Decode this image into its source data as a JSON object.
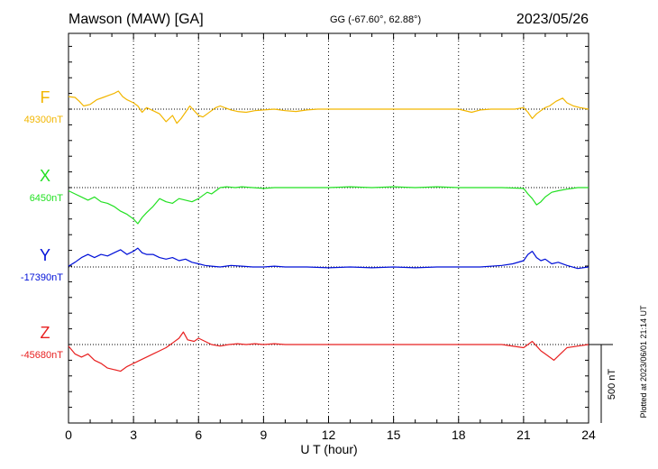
{
  "header": {
    "station": "Mawson (MAW)  [GA]",
    "coords": "GG (-67.60°,  62.88°)",
    "date": "2023/05/26"
  },
  "footer": {
    "plotted": "Plotted at 2023/06/01 21:14 UT",
    "scale_label": "500 nT"
  },
  "chart_data": {
    "type": "line",
    "xlabel": "U T (hour)",
    "xlim": [
      0,
      24
    ],
    "x_ticks": [
      0,
      3,
      6,
      9,
      12,
      15,
      18,
      21,
      24
    ],
    "x_tick_labels": [
      "0",
      "3",
      "6",
      "9",
      "12",
      "15",
      "18",
      "21",
      "24"
    ],
    "scale_nT": 500,
    "grid": "dotted vertical lines every 3 h",
    "series": [
      {
        "name": "F",
        "baseline_label": "49300nT",
        "baseline_nT": 49300,
        "color": "#f2b600",
        "points": [
          [
            0,
            80
          ],
          [
            0.3,
            75
          ],
          [
            0.5,
            50
          ],
          [
            0.7,
            20
          ],
          [
            1.0,
            30
          ],
          [
            1.3,
            60
          ],
          [
            1.6,
            75
          ],
          [
            1.9,
            90
          ],
          [
            2.1,
            100
          ],
          [
            2.3,
            115
          ],
          [
            2.5,
            80
          ],
          [
            2.7,
            60
          ],
          [
            3.0,
            40
          ],
          [
            3.2,
            20
          ],
          [
            3.4,
            -20
          ],
          [
            3.6,
            10
          ],
          [
            3.9,
            -10
          ],
          [
            4.2,
            -30
          ],
          [
            4.5,
            -80
          ],
          [
            4.8,
            -40
          ],
          [
            5.0,
            -90
          ],
          [
            5.2,
            -60
          ],
          [
            5.4,
            -20
          ],
          [
            5.6,
            20
          ],
          [
            5.8,
            -10
          ],
          [
            6.0,
            -40
          ],
          [
            6.2,
            -50
          ],
          [
            6.4,
            -30
          ],
          [
            6.6,
            -10
          ],
          [
            6.8,
            10
          ],
          [
            7.0,
            20
          ],
          [
            7.2,
            10
          ],
          [
            7.5,
            -5
          ],
          [
            7.8,
            -15
          ],
          [
            8.2,
            -20
          ],
          [
            8.6,
            -10
          ],
          [
            9.0,
            -5
          ],
          [
            9.5,
            0
          ],
          [
            10,
            -10
          ],
          [
            10.5,
            -15
          ],
          [
            11,
            -5
          ],
          [
            11.5,
            0
          ],
          [
            12,
            0
          ],
          [
            13,
            0
          ],
          [
            14,
            0
          ],
          [
            15,
            0
          ],
          [
            16,
            0
          ],
          [
            17,
            0
          ],
          [
            18,
            0
          ],
          [
            18.6,
            -20
          ],
          [
            19,
            -5
          ],
          [
            19.5,
            0
          ],
          [
            20,
            0
          ],
          [
            20.6,
            0
          ],
          [
            21,
            10
          ],
          [
            21.2,
            -20
          ],
          [
            21.4,
            -60
          ],
          [
            21.6,
            -30
          ],
          [
            21.8,
            -10
          ],
          [
            22.0,
            10
          ],
          [
            22.2,
            20
          ],
          [
            22.5,
            50
          ],
          [
            22.8,
            70
          ],
          [
            23.0,
            40
          ],
          [
            23.3,
            20
          ],
          [
            23.6,
            10
          ],
          [
            24,
            0
          ]
        ]
      },
      {
        "name": "X",
        "baseline_label": "6450nT",
        "baseline_nT": 6450,
        "color": "#22e022",
        "points": [
          [
            0,
            -20
          ],
          [
            0.3,
            -40
          ],
          [
            0.6,
            -60
          ],
          [
            0.9,
            -80
          ],
          [
            1.2,
            -60
          ],
          [
            1.5,
            -90
          ],
          [
            1.8,
            -100
          ],
          [
            2.1,
            -120
          ],
          [
            2.4,
            -150
          ],
          [
            2.7,
            -170
          ],
          [
            3.0,
            -200
          ],
          [
            3.2,
            -230
          ],
          [
            3.4,
            -190
          ],
          [
            3.6,
            -160
          ],
          [
            3.9,
            -120
          ],
          [
            4.2,
            -70
          ],
          [
            4.5,
            -90
          ],
          [
            4.8,
            -100
          ],
          [
            5.1,
            -70
          ],
          [
            5.4,
            -80
          ],
          [
            5.7,
            -90
          ],
          [
            6.0,
            -70
          ],
          [
            6.2,
            -50
          ],
          [
            6.4,
            -30
          ],
          [
            6.6,
            -40
          ],
          [
            6.8,
            -20
          ],
          [
            7.0,
            0
          ],
          [
            7.3,
            5
          ],
          [
            7.7,
            0
          ],
          [
            8.0,
            5
          ],
          [
            8.5,
            0
          ],
          [
            9.0,
            -5
          ],
          [
            9.5,
            0
          ],
          [
            10,
            0
          ],
          [
            11,
            0
          ],
          [
            12,
            0
          ],
          [
            13,
            5
          ],
          [
            14,
            0
          ],
          [
            15,
            5
          ],
          [
            16,
            0
          ],
          [
            17,
            5
          ],
          [
            18,
            0
          ],
          [
            19,
            0
          ],
          [
            20,
            0
          ],
          [
            21,
            -5
          ],
          [
            21.2,
            -40
          ],
          [
            21.4,
            -70
          ],
          [
            21.6,
            -110
          ],
          [
            21.8,
            -90
          ],
          [
            22.0,
            -60
          ],
          [
            22.3,
            -30
          ],
          [
            22.6,
            -20
          ],
          [
            23,
            -10
          ],
          [
            23.5,
            0
          ],
          [
            24,
            0
          ]
        ]
      },
      {
        "name": "Y",
        "baseline_label": "-17390nT",
        "baseline_nT": -17390,
        "color": "#0010d8",
        "points": [
          [
            0,
            5
          ],
          [
            0.3,
            30
          ],
          [
            0.6,
            60
          ],
          [
            0.9,
            80
          ],
          [
            1.2,
            60
          ],
          [
            1.5,
            80
          ],
          [
            1.8,
            70
          ],
          [
            2.1,
            90
          ],
          [
            2.4,
            110
          ],
          [
            2.7,
            80
          ],
          [
            3.0,
            100
          ],
          [
            3.2,
            120
          ],
          [
            3.4,
            90
          ],
          [
            3.6,
            80
          ],
          [
            3.9,
            80
          ],
          [
            4.2,
            60
          ],
          [
            4.5,
            50
          ],
          [
            4.8,
            60
          ],
          [
            5.1,
            40
          ],
          [
            5.4,
            50
          ],
          [
            5.7,
            30
          ],
          [
            6.0,
            20
          ],
          [
            6.3,
            10
          ],
          [
            6.6,
            5
          ],
          [
            7.0,
            0
          ],
          [
            7.5,
            10
          ],
          [
            8.0,
            5
          ],
          [
            8.5,
            0
          ],
          [
            9.0,
            0
          ],
          [
            9.5,
            5
          ],
          [
            10,
            0
          ],
          [
            11,
            0
          ],
          [
            12,
            -5
          ],
          [
            13,
            0
          ],
          [
            14,
            -5
          ],
          [
            15,
            0
          ],
          [
            16,
            -5
          ],
          [
            17,
            0
          ],
          [
            18,
            0
          ],
          [
            19,
            0
          ],
          [
            20,
            10
          ],
          [
            20.5,
            20
          ],
          [
            21,
            40
          ],
          [
            21.2,
            80
          ],
          [
            21.4,
            100
          ],
          [
            21.6,
            60
          ],
          [
            21.8,
            40
          ],
          [
            22.0,
            50
          ],
          [
            22.3,
            20
          ],
          [
            22.6,
            30
          ],
          [
            23.0,
            10
          ],
          [
            23.5,
            -10
          ],
          [
            24,
            0
          ]
        ]
      },
      {
        "name": "Z",
        "baseline_label": "-45680nT",
        "baseline_nT": -45680,
        "color": "#e82020",
        "points": [
          [
            0,
            -10
          ],
          [
            0.3,
            -60
          ],
          [
            0.6,
            -80
          ],
          [
            0.9,
            -60
          ],
          [
            1.2,
            -100
          ],
          [
            1.5,
            -120
          ],
          [
            1.8,
            -150
          ],
          [
            2.1,
            -160
          ],
          [
            2.4,
            -170
          ],
          [
            2.7,
            -140
          ],
          [
            3.0,
            -120
          ],
          [
            3.3,
            -100
          ],
          [
            3.6,
            -80
          ],
          [
            3.9,
            -60
          ],
          [
            4.2,
            -40
          ],
          [
            4.5,
            -20
          ],
          [
            4.8,
            10
          ],
          [
            5.1,
            40
          ],
          [
            5.3,
            80
          ],
          [
            5.5,
            30
          ],
          [
            5.8,
            20
          ],
          [
            6.0,
            40
          ],
          [
            6.3,
            20
          ],
          [
            6.6,
            0
          ],
          [
            7.0,
            -10
          ],
          [
            7.4,
            0
          ],
          [
            7.8,
            5
          ],
          [
            8.2,
            0
          ],
          [
            8.6,
            5
          ],
          [
            9.0,
            0
          ],
          [
            9.5,
            5
          ],
          [
            10,
            0
          ],
          [
            11,
            0
          ],
          [
            12,
            0
          ],
          [
            13,
            0
          ],
          [
            14,
            0
          ],
          [
            15,
            0
          ],
          [
            16,
            0
          ],
          [
            17,
            0
          ],
          [
            18,
            0
          ],
          [
            19,
            0
          ],
          [
            20,
            0
          ],
          [
            21,
            -20
          ],
          [
            21.2,
            0
          ],
          [
            21.4,
            20
          ],
          [
            21.6,
            -10
          ],
          [
            21.8,
            -40
          ],
          [
            22.0,
            -60
          ],
          [
            22.2,
            -80
          ],
          [
            22.4,
            -100
          ],
          [
            22.7,
            -60
          ],
          [
            23.0,
            -20
          ],
          [
            23.5,
            -10
          ],
          [
            24,
            0
          ]
        ]
      }
    ]
  }
}
